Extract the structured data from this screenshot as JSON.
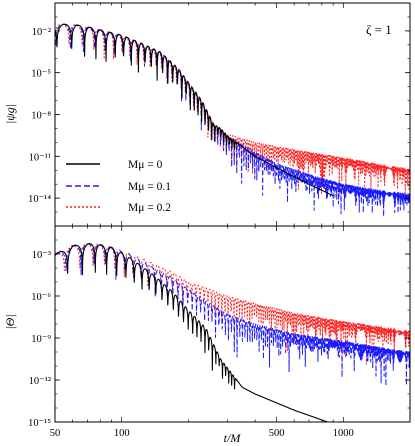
{
  "chart_data": [
    {
      "type": "line",
      "ylabel": "|ψg|",
      "annotation": "ζ = 1",
      "xscale": "log",
      "yscale": "log",
      "xlim": [
        50,
        2000
      ],
      "ylim": [
        1e-16,
        1
      ],
      "y_tick_labels": [
        "10⁻²",
        "10⁻⁵",
        "10⁻⁸",
        "10⁻¹¹",
        "10⁻¹⁴"
      ],
      "y_tick_values": [
        0.01,
        1e-05,
        1e-08,
        1e-11,
        1e-14
      ],
      "legend": "lower-left",
      "series": [
        {
          "name": "Mμ = 0",
          "color": "#000000",
          "dash": "solid",
          "envelope": [
            [
              50,
              0.03
            ],
            [
              60,
              0.03
            ],
            [
              70,
              0.02
            ],
            [
              80,
              0.012
            ],
            [
              100,
              0.005
            ],
            [
              120,
              0.0015
            ],
            [
              150,
              0.0003
            ],
            [
              180,
              2e-05
            ],
            [
              200,
              2e-06
            ],
            [
              230,
              1e-07
            ],
            [
              260,
              2e-09
            ],
            [
              280,
              1e-09
            ],
            [
              300,
              3e-10
            ],
            [
              400,
              1e-11
            ],
            [
              500,
              1.5e-12
            ],
            [
              700,
              1e-13
            ],
            [
              900,
              1.5e-14
            ]
          ],
          "late_tail": "smooth"
        },
        {
          "name": "Mμ = 0.1",
          "color": "#1a1aff",
          "dash": "dashed",
          "envelope": [
            [
              50,
              0.03
            ],
            [
              60,
              0.03
            ],
            [
              70,
              0.02
            ],
            [
              80,
              0.012
            ],
            [
              100,
              0.005
            ],
            [
              120,
              0.0015
            ],
            [
              150,
              0.0003
            ],
            [
              180,
              2e-05
            ],
            [
              200,
              2e-06
            ],
            [
              230,
              1e-07
            ],
            [
              260,
              2e-09
            ],
            [
              280,
              1e-09
            ],
            [
              300,
              3e-10
            ],
            [
              400,
              2e-11
            ],
            [
              500,
              3e-12
            ],
            [
              700,
              5e-13
            ],
            [
              1000,
              1e-13
            ],
            [
              1400,
              4e-14
            ],
            [
              2000,
              2e-14
            ]
          ],
          "late_tail": "oscillating"
        },
        {
          "name": "Mμ = 0.2",
          "color": "#ff2020",
          "dash": "dotted",
          "envelope": [
            [
              50,
              0.03
            ],
            [
              60,
              0.03
            ],
            [
              70,
              0.02
            ],
            [
              80,
              0.012
            ],
            [
              100,
              0.005
            ],
            [
              120,
              0.0015
            ],
            [
              150,
              0.0003
            ],
            [
              180,
              2e-05
            ],
            [
              200,
              2e-06
            ],
            [
              230,
              1e-07
            ],
            [
              260,
              2e-09
            ],
            [
              280,
              1e-09
            ],
            [
              300,
              4e-10
            ],
            [
              400,
              1e-10
            ],
            [
              500,
              5e-11
            ],
            [
              700,
              2e-11
            ],
            [
              1000,
              8e-12
            ],
            [
              1400,
              3e-12
            ],
            [
              2000,
              1.2e-12
            ]
          ],
          "late_tail": "oscillating"
        }
      ]
    },
    {
      "type": "line",
      "ylabel": "|Θ|",
      "xlabel": "t/M",
      "xscale": "log",
      "yscale": "log",
      "xlim": [
        50,
        2000
      ],
      "ylim": [
        1e-15,
        0.1
      ],
      "x_tick_labels": [
        "50",
        "100",
        "500",
        "1000"
      ],
      "x_tick_values": [
        50,
        100,
        500,
        1000
      ],
      "y_tick_labels": [
        "10⁻³",
        "10⁻⁶",
        "10⁻⁹",
        "10⁻¹²",
        "10⁻¹⁵"
      ],
      "y_tick_values": [
        0.001,
        1e-06,
        1e-09,
        1e-12,
        1e-15
      ],
      "series": [
        {
          "name": "Mμ = 0",
          "color": "#000000",
          "dash": "solid",
          "envelope": [
            [
              50,
              0.001
            ],
            [
              60,
              0.004
            ],
            [
              75,
              0.006
            ],
            [
              90,
              0.003
            ],
            [
              110,
              0.0005
            ],
            [
              140,
              3e-05
            ],
            [
              170,
              2e-06
            ],
            [
              200,
              1e-07
            ],
            [
              240,
              5e-09
            ],
            [
              280,
              3e-11
            ],
            [
              320,
              2e-12
            ],
            [
              350,
              3e-13
            ],
            [
              400,
              1e-13
            ],
            [
              600,
              7e-15
            ],
            [
              850,
              1e-15
            ]
          ],
          "late_tail": "smooth"
        },
        {
          "name": "Mμ = 0.1",
          "color": "#1a1aff",
          "dash": "dashed",
          "envelope": [
            [
              50,
              0.001
            ],
            [
              60,
              0.004
            ],
            [
              75,
              0.006
            ],
            [
              90,
              0.003
            ],
            [
              110,
              0.0008
            ],
            [
              140,
              0.0001
            ],
            [
              170,
              2e-05
            ],
            [
              200,
              3e-06
            ],
            [
              250,
              3e-07
            ],
            [
              300,
              5e-08
            ],
            [
              400,
              1e-08
            ],
            [
              600,
              2e-09
            ],
            [
              1000,
              6e-10
            ],
            [
              1500,
              2e-10
            ],
            [
              2000,
              1e-10
            ]
          ],
          "late_tail": "oscillating"
        },
        {
          "name": "Mμ = 0.2",
          "color": "#ff2020",
          "dash": "dotted",
          "envelope": [
            [
              50,
              0.001
            ],
            [
              60,
              0.004
            ],
            [
              75,
              0.006
            ],
            [
              90,
              0.003
            ],
            [
              110,
              0.001
            ],
            [
              140,
              0.0002
            ],
            [
              170,
              5e-05
            ],
            [
              200,
              1e-05
            ],
            [
              250,
              3e-06
            ],
            [
              300,
              1e-06
            ],
            [
              400,
              3e-07
            ],
            [
              600,
              6e-08
            ],
            [
              1000,
              1.5e-08
            ],
            [
              1500,
              6e-09
            ],
            [
              2000,
              3e-09
            ]
          ],
          "late_tail": "oscillating"
        }
      ]
    }
  ]
}
